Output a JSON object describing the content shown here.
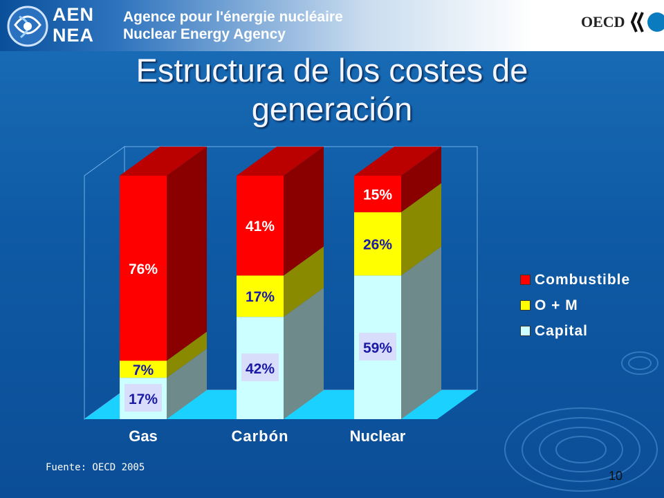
{
  "header": {
    "logo_text_line1": "AEN",
    "logo_text_line2": "NEA",
    "agency_line1": "Agence pour l'énergie nucléaire",
    "agency_line2": "Nuclear Energy Agency",
    "oecd": "OECD"
  },
  "slide": {
    "title_line1": "Estructura de los costes de",
    "title_line2": "generación",
    "source": "Fuente: OECD 2005",
    "page_number": "10"
  },
  "colors": {
    "combustible": "#ff0000",
    "om": "#ffff00",
    "capital": "#ccffff",
    "floor": "#1ad1ff",
    "label_blue": "#1a1aa6"
  },
  "chart_data": {
    "type": "bar",
    "stacked": true,
    "categories": [
      "Gas",
      "Carbón",
      "Nuclear"
    ],
    "series": [
      {
        "name": "Capital",
        "values": [
          17,
          42,
          59
        ],
        "labels": [
          "17%",
          "42%",
          "59%"
        ]
      },
      {
        "name": "O + M",
        "values": [
          7,
          17,
          26
        ],
        "labels": [
          "7%",
          "17%",
          "26%"
        ]
      },
      {
        "name": "Combustible",
        "values": [
          76,
          41,
          15
        ],
        "labels": [
          "76%",
          "41%",
          "15%"
        ]
      }
    ],
    "ylim": [
      0,
      100
    ],
    "legend_position": "right",
    "legend": [
      "Combustible",
      "O + M",
      "Capital"
    ],
    "grid": false
  }
}
